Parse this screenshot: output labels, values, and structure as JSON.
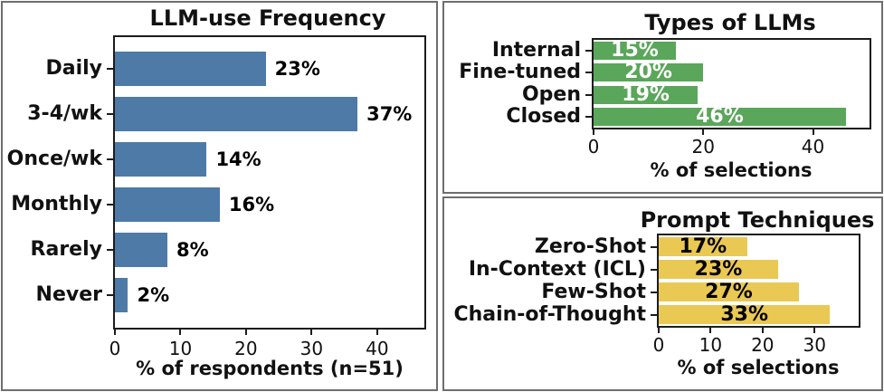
{
  "page": {
    "background": "#ffffff",
    "panel_border_color": "#6e6e6e",
    "axis_color": "#1c1c1c"
  },
  "chart_data": [
    {
      "id": "llm-use-frequency",
      "type": "bar",
      "orientation": "horizontal",
      "title": "LLM-use Frequency",
      "categories": [
        "Daily",
        "3-4/wk",
        "Once/wk",
        "Monthly",
        "Rarely",
        "Never"
      ],
      "values": [
        23,
        37,
        14,
        16,
        8,
        2
      ],
      "value_labels": [
        "23%",
        "37%",
        "14%",
        "16%",
        "8%",
        "2%"
      ],
      "xlabel": "% of respondents (n=51)",
      "ylabel": "",
      "xticks": [
        0,
        10,
        20,
        30,
        40
      ],
      "xlim": [
        0,
        47.2
      ],
      "bar_color": "#4d7aa7",
      "value_label_style": {
        "position": "outside-right",
        "color": "#000000"
      },
      "grid": false,
      "legend": false
    },
    {
      "id": "types-of-llms",
      "type": "bar",
      "orientation": "horizontal",
      "title": "Types of LLMs",
      "categories": [
        "Internal",
        "Fine-tuned",
        "Open",
        "Closed"
      ],
      "values": [
        15,
        20,
        19,
        46
      ],
      "value_labels": [
        "15%",
        "20%",
        "19%",
        "46%"
      ],
      "xlabel": "% of selections",
      "ylabel": "",
      "xticks": [
        0,
        20,
        40
      ],
      "xlim": [
        0,
        50.3
      ],
      "bar_color": "#5aa65a",
      "value_label_style": {
        "position": "inside-center",
        "color": "#ffffff"
      },
      "grid": false,
      "legend": false
    },
    {
      "id": "prompt-techniques",
      "type": "bar",
      "orientation": "horizontal",
      "title": "Prompt Techniques",
      "categories": [
        "Zero-Shot",
        "In-Context (ICL)",
        "Few-Shot",
        "Chain-of-Thought"
      ],
      "values": [
        17,
        23,
        27,
        33
      ],
      "value_labels": [
        "17%",
        "23%",
        "27%",
        "33%"
      ],
      "xlabel": "% of selections",
      "ylabel": "",
      "xticks": [
        0,
        10,
        20,
        30
      ],
      "xlim": [
        0,
        38.5
      ],
      "bar_color": "#eac854",
      "value_label_style": {
        "position": "inside-center",
        "color": "#000000"
      },
      "grid": false,
      "legend": false
    }
  ]
}
